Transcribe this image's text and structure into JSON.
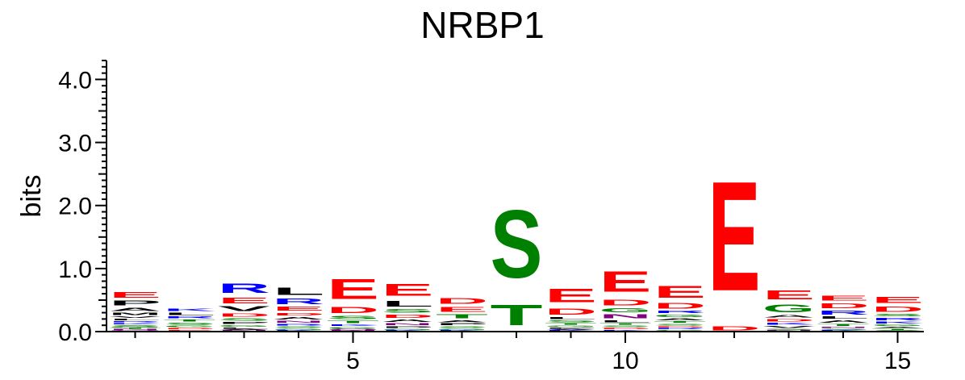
{
  "chart_data": {
    "type": "sequence-logo",
    "title": "NRBP1",
    "ylabel": "bits",
    "ylim": [
      0,
      4.3
    ],
    "y_ticks": [
      "0.0",
      "1.0",
      "2.0",
      "3.0",
      "4.0"
    ],
    "x_ticks": [
      5,
      10,
      15
    ],
    "colors": {
      "acidic": "#ff0000",
      "basic": "#0000ff",
      "hydrophobic": "#000000",
      "polar": "#008000",
      "amide": "#800080"
    },
    "positions": [
      {
        "pos": 1,
        "letters": [
          [
            "Q",
            0.02
          ],
          [
            "N",
            0.02
          ],
          [
            "T",
            0.02
          ],
          [
            "G",
            0.02
          ],
          [
            "S",
            0.03
          ],
          [
            "K",
            0.03
          ],
          [
            "R",
            0.03
          ],
          [
            "L",
            0.04
          ],
          [
            "V",
            0.04
          ],
          [
            "M",
            0.06
          ],
          [
            "A",
            0.08
          ],
          [
            "P",
            0.12
          ],
          [
            "E",
            0.14
          ]
        ]
      },
      {
        "pos": 2,
        "letters": [
          [
            "E",
            0.03
          ],
          [
            "D",
            0.03
          ],
          [
            "G",
            0.04
          ],
          [
            "S",
            0.05
          ],
          [
            "T",
            0.05
          ],
          [
            "R",
            0.05
          ],
          [
            "L",
            0.06
          ],
          [
            "K",
            0.07
          ]
        ]
      },
      {
        "pos": 3,
        "letters": [
          [
            "N",
            0.02
          ],
          [
            "A",
            0.02
          ],
          [
            "L",
            0.03
          ],
          [
            "G",
            0.04
          ],
          [
            "P",
            0.05
          ],
          [
            "S",
            0.06
          ],
          [
            "D",
            0.08
          ],
          [
            "V",
            0.12
          ],
          [
            "E",
            0.15
          ],
          [
            "R",
            0.24
          ]
        ]
      },
      {
        "pos": 4,
        "letters": [
          [
            "K",
            0.02
          ],
          [
            "G",
            0.03
          ],
          [
            "S",
            0.04
          ],
          [
            "R",
            0.04
          ],
          [
            "N",
            0.05
          ],
          [
            "A",
            0.06
          ],
          [
            "D",
            0.07
          ],
          [
            "E",
            0.1
          ],
          [
            "R",
            0.14
          ],
          [
            "L",
            0.18
          ]
        ]
      },
      {
        "pos": 5,
        "letters": [
          [
            "N",
            0.02
          ],
          [
            "Q",
            0.02
          ],
          [
            "G",
            0.04
          ],
          [
            "K",
            0.04
          ],
          [
            "T",
            0.06
          ],
          [
            "S",
            0.08
          ],
          [
            "D",
            0.16
          ],
          [
            "E",
            0.5
          ]
        ]
      },
      {
        "pos": 6,
        "letters": [
          [
            "K",
            0.02
          ],
          [
            "G",
            0.03
          ],
          [
            "P",
            0.04
          ],
          [
            "N",
            0.05
          ],
          [
            "A",
            0.06
          ],
          [
            "D",
            0.08
          ],
          [
            "S",
            0.09
          ],
          [
            "L",
            0.14
          ],
          [
            "E",
            0.3
          ]
        ]
      },
      {
        "pos": 7,
        "letters": [
          [
            "K",
            0.02
          ],
          [
            "G",
            0.03
          ],
          [
            "S",
            0.04
          ],
          [
            "P",
            0.05
          ],
          [
            "A",
            0.05
          ],
          [
            "T",
            0.1
          ],
          [
            "E",
            0.12
          ],
          [
            "D",
            0.15
          ]
        ]
      },
      {
        "pos": 8,
        "letters": [
          [
            "T",
            0.52
          ],
          [
            "S",
            1.72
          ]
        ]
      },
      {
        "pos": 9,
        "letters": [
          [
            "K",
            0.02
          ],
          [
            "A",
            0.02
          ],
          [
            "P",
            0.03
          ],
          [
            "G",
            0.03
          ],
          [
            "T",
            0.04
          ],
          [
            "S",
            0.05
          ],
          [
            "L",
            0.05
          ],
          [
            "D",
            0.16
          ],
          [
            "E",
            0.35
          ]
        ]
      },
      {
        "pos": 10,
        "letters": [
          [
            "K",
            0.03
          ],
          [
            "D",
            0.03
          ],
          [
            "S",
            0.04
          ],
          [
            "T",
            0.04
          ],
          [
            "L",
            0.05
          ],
          [
            "N",
            0.1
          ],
          [
            "G",
            0.1
          ],
          [
            "D",
            0.14
          ],
          [
            "E",
            0.52
          ]
        ]
      },
      {
        "pos": 11,
        "letters": [
          [
            "G",
            0.03
          ],
          [
            "R",
            0.03
          ],
          [
            "D",
            0.03
          ],
          [
            "S",
            0.04
          ],
          [
            "T",
            0.04
          ],
          [
            "A",
            0.05
          ],
          [
            "G",
            0.06
          ],
          [
            "R",
            0.06
          ],
          [
            "D",
            0.14
          ],
          [
            "E",
            0.3
          ]
        ]
      },
      {
        "pos": 12,
        "letters": [
          [
            "D",
            0.11
          ],
          [
            "E",
            2.78
          ]
        ]
      },
      {
        "pos": 13,
        "letters": [
          [
            "N",
            0.02
          ],
          [
            "S",
            0.03
          ],
          [
            "V",
            0.05
          ],
          [
            "K",
            0.05
          ],
          [
            "D",
            0.06
          ],
          [
            "A",
            0.06
          ],
          [
            "G",
            0.2
          ],
          [
            "E",
            0.22
          ]
        ]
      },
      {
        "pos": 14,
        "letters": [
          [
            "K",
            0.02
          ],
          [
            "S",
            0.03
          ],
          [
            "N",
            0.03
          ],
          [
            "T",
            0.05
          ],
          [
            "A",
            0.06
          ],
          [
            "L",
            0.06
          ],
          [
            "R",
            0.1
          ],
          [
            "D",
            0.12
          ],
          [
            "E",
            0.12
          ]
        ]
      },
      {
        "pos": 15,
        "letters": [
          [
            "S",
            0.02
          ],
          [
            "T",
            0.03
          ],
          [
            "A",
            0.03
          ],
          [
            "G",
            0.04
          ],
          [
            "K",
            0.05
          ],
          [
            "R",
            0.06
          ],
          [
            "S",
            0.06
          ],
          [
            "D",
            0.13
          ],
          [
            "E",
            0.16
          ]
        ]
      }
    ]
  }
}
